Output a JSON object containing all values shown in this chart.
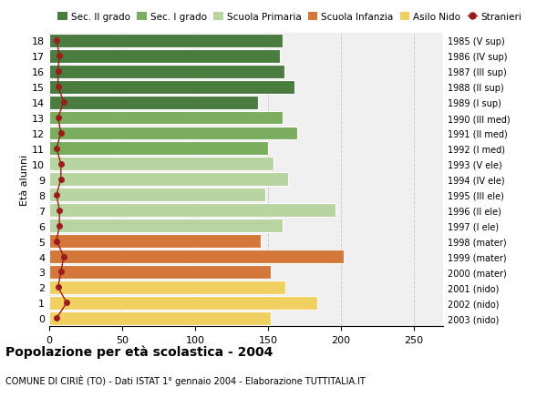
{
  "ages": [
    18,
    17,
    16,
    15,
    14,
    13,
    12,
    11,
    10,
    9,
    8,
    7,
    6,
    5,
    4,
    3,
    2,
    1,
    0
  ],
  "right_labels": [
    "1985 (V sup)",
    "1986 (IV sup)",
    "1987 (III sup)",
    "1988 (II sup)",
    "1989 (I sup)",
    "1990 (III med)",
    "1991 (II med)",
    "1992 (I med)",
    "1993 (V ele)",
    "1994 (IV ele)",
    "1995 (III ele)",
    "1996 (II ele)",
    "1997 (I ele)",
    "1998 (mater)",
    "1999 (mater)",
    "2000 (mater)",
    "2001 (nido)",
    "2002 (nido)",
    "2003 (nido)"
  ],
  "bar_values": [
    160,
    158,
    161,
    168,
    143,
    160,
    170,
    150,
    154,
    164,
    148,
    196,
    160,
    145,
    202,
    152,
    162,
    184,
    152
  ],
  "bar_colors": [
    "#4a7c3f",
    "#4a7c3f",
    "#4a7c3f",
    "#4a7c3f",
    "#4a7c3f",
    "#7aad5e",
    "#7aad5e",
    "#7aad5e",
    "#b8d4a0",
    "#b8d4a0",
    "#b8d4a0",
    "#b8d4a0",
    "#b8d4a0",
    "#d4773a",
    "#d4773a",
    "#d4773a",
    "#f0d060",
    "#f0d060",
    "#f0d060"
  ],
  "stranieri_values": [
    5,
    7,
    6,
    6,
    10,
    6,
    8,
    5,
    8,
    8,
    5,
    7,
    7,
    5,
    10,
    8,
    6,
    12,
    5
  ],
  "stranieri_color": "#9b1c1c",
  "legend_labels": [
    "Sec. II grado",
    "Sec. I grado",
    "Scuola Primaria",
    "Scuola Infanzia",
    "Asilo Nido",
    "Stranieri"
  ],
  "legend_colors": [
    "#4a7c3f",
    "#7aad5e",
    "#b8d4a0",
    "#d4773a",
    "#f0d060",
    "#9b1c1c"
  ],
  "ylabel_left": "Età alunni",
  "xlim": [
    0,
    270
  ],
  "xticks": [
    0,
    50,
    100,
    150,
    200,
    250
  ],
  "title": "Popolazione per età scolastica - 2004",
  "subtitle": "COMUNE DI CIRIÈ (TO) - Dati ISTAT 1° gennaio 2004 - Elaborazione TUTTITALIA.IT",
  "bg_color": "#ffffff",
  "plot_bg_color": "#f0f0f0",
  "grid_color": "#cccccc",
  "bar_height": 0.88
}
